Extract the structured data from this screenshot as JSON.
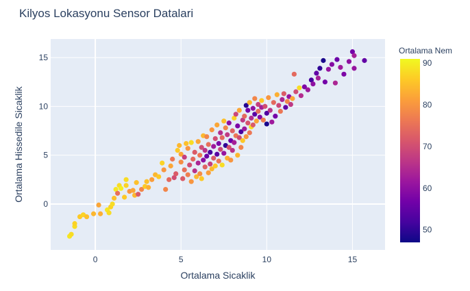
{
  "chart_data": {
    "type": "scatter",
    "title": "Kilyos Lokasyonu Sensor Datalari",
    "xlabel": "Ortalama Sicaklik",
    "ylabel": "Ortalama Hissedile Sicaklik",
    "xlim": [
      -2.6,
      16.9
    ],
    "ylim": [
      -4.7,
      16.9
    ],
    "x_ticks": [
      "0",
      "5",
      "10",
      "15"
    ],
    "x_tick_values": [
      0,
      5,
      10,
      15
    ],
    "y_ticks": [
      "0",
      "5",
      "10",
      "15"
    ],
    "y_tick_values": [
      0,
      5,
      10,
      15
    ],
    "grid": true,
    "colorbar": {
      "title": "Ortalama Nem",
      "range": [
        47,
        91
      ],
      "ticks": [
        "90",
        "80",
        "70",
        "60",
        "50"
      ],
      "tick_values": [
        90,
        80,
        70,
        60,
        50
      ],
      "colorscale": [
        "#0d0887",
        "#46039f",
        "#7201a8",
        "#9c179e",
        "#bd3786",
        "#d8576b",
        "#ed7953",
        "#fb9f3a",
        "#fdca26",
        "#f0f921"
      ]
    },
    "points": [
      {
        "x": -1.5,
        "y": -3.3,
        "c": 89
      },
      {
        "x": -1.4,
        "y": -3.1,
        "c": 88
      },
      {
        "x": -1.2,
        "y": -2.3,
        "c": 88
      },
      {
        "x": -1.2,
        "y": -2.0,
        "c": 87
      },
      {
        "x": -0.9,
        "y": -1.3,
        "c": 86
      },
      {
        "x": -0.7,
        "y": -1.1,
        "c": 87
      },
      {
        "x": -0.5,
        "y": -1.3,
        "c": 85
      },
      {
        "x": -0.1,
        "y": -1.0,
        "c": 84
      },
      {
        "x": 0.2,
        "y": -0.1,
        "c": 82
      },
      {
        "x": 0.3,
        "y": -1.0,
        "c": 83
      },
      {
        "x": 0.7,
        "y": -0.6,
        "c": 89
      },
      {
        "x": 0.8,
        "y": -0.9,
        "c": 88
      },
      {
        "x": 0.9,
        "y": -0.3,
        "c": 87
      },
      {
        "x": 1.0,
        "y": 0.0,
        "c": 88
      },
      {
        "x": 1.1,
        "y": 0.6,
        "c": 85
      },
      {
        "x": 1.2,
        "y": 1.5,
        "c": 89
      },
      {
        "x": 1.3,
        "y": 1.1,
        "c": 75
      },
      {
        "x": 1.4,
        "y": 1.9,
        "c": 88
      },
      {
        "x": 1.5,
        "y": 1.6,
        "c": 90
      },
      {
        "x": 1.7,
        "y": 0.7,
        "c": 86
      },
      {
        "x": 1.8,
        "y": 1.9,
        "c": 87
      },
      {
        "x": 1.8,
        "y": 2.5,
        "c": 88
      },
      {
        "x": 2.0,
        "y": 1.3,
        "c": 80
      },
      {
        "x": 2.2,
        "y": 1.4,
        "c": 82
      },
      {
        "x": 2.3,
        "y": 0.9,
        "c": 84
      },
      {
        "x": 2.4,
        "y": 2.2,
        "c": 85
      },
      {
        "x": 2.5,
        "y": 1.0,
        "c": 72
      },
      {
        "x": 2.7,
        "y": 1.5,
        "c": 78
      },
      {
        "x": 2.9,
        "y": 1.8,
        "c": 86
      },
      {
        "x": 3.0,
        "y": 2.3,
        "c": 85
      },
      {
        "x": 3.1,
        "y": 1.7,
        "c": 83
      },
      {
        "x": 3.3,
        "y": 2.5,
        "c": 81
      },
      {
        "x": 3.5,
        "y": 3.0,
        "c": 84
      },
      {
        "x": 3.7,
        "y": 2.8,
        "c": 86
      },
      {
        "x": 3.9,
        "y": 4.2,
        "c": 87
      },
      {
        "x": 4.0,
        "y": 3.5,
        "c": 80
      },
      {
        "x": 4.1,
        "y": 1.5,
        "c": 78
      },
      {
        "x": 4.3,
        "y": 2.5,
        "c": 74
      },
      {
        "x": 4.4,
        "y": 3.9,
        "c": 82
      },
      {
        "x": 4.5,
        "y": 4.6,
        "c": 76
      },
      {
        "x": 4.6,
        "y": 2.7,
        "c": 70
      },
      {
        "x": 4.7,
        "y": 3.1,
        "c": 72
      },
      {
        "x": 4.8,
        "y": 5.5,
        "c": 86
      },
      {
        "x": 4.9,
        "y": 6.0,
        "c": 84
      },
      {
        "x": 5.0,
        "y": 4.3,
        "c": 79
      },
      {
        "x": 5.0,
        "y": 5.1,
        "c": 82
      },
      {
        "x": 5.1,
        "y": 2.6,
        "c": 72
      },
      {
        "x": 5.2,
        "y": 3.5,
        "c": 75
      },
      {
        "x": 5.2,
        "y": 4.8,
        "c": 68
      },
      {
        "x": 5.3,
        "y": 6.2,
        "c": 85
      },
      {
        "x": 5.4,
        "y": 3.0,
        "c": 77
      },
      {
        "x": 5.4,
        "y": 5.7,
        "c": 80
      },
      {
        "x": 5.5,
        "y": 4.0,
        "c": 70
      },
      {
        "x": 5.6,
        "y": 2.3,
        "c": 80
      },
      {
        "x": 5.6,
        "y": 6.3,
        "c": 88
      },
      {
        "x": 5.7,
        "y": 4.6,
        "c": 74
      },
      {
        "x": 5.8,
        "y": 3.4,
        "c": 66
      },
      {
        "x": 5.8,
        "y": 5.3,
        "c": 72
      },
      {
        "x": 5.9,
        "y": 2.8,
        "c": 84
      },
      {
        "x": 6.0,
        "y": 4.2,
        "c": 64
      },
      {
        "x": 6.0,
        "y": 6.4,
        "c": 82
      },
      {
        "x": 6.1,
        "y": 5.0,
        "c": 76
      },
      {
        "x": 6.1,
        "y": 3.1,
        "c": 79
      },
      {
        "x": 6.2,
        "y": 5.8,
        "c": 70
      },
      {
        "x": 6.2,
        "y": 2.6,
        "c": 86
      },
      {
        "x": 6.3,
        "y": 4.5,
        "c": 60
      },
      {
        "x": 6.3,
        "y": 7.0,
        "c": 84
      },
      {
        "x": 6.4,
        "y": 3.8,
        "c": 73
      },
      {
        "x": 6.4,
        "y": 5.5,
        "c": 66
      },
      {
        "x": 6.5,
        "y": 4.9,
        "c": 56
      },
      {
        "x": 6.5,
        "y": 6.9,
        "c": 78
      },
      {
        "x": 6.6,
        "y": 3.2,
        "c": 81
      },
      {
        "x": 6.6,
        "y": 6.1,
        "c": 75
      },
      {
        "x": 6.7,
        "y": 4.1,
        "c": 68
      },
      {
        "x": 6.7,
        "y": 5.3,
        "c": 52
      },
      {
        "x": 6.8,
        "y": 7.6,
        "c": 80
      },
      {
        "x": 6.8,
        "y": 3.6,
        "c": 84
      },
      {
        "x": 6.9,
        "y": 5.9,
        "c": 62
      },
      {
        "x": 6.9,
        "y": 4.7,
        "c": 72
      },
      {
        "x": 7.0,
        "y": 6.7,
        "c": 70
      },
      {
        "x": 7.0,
        "y": 3.9,
        "c": 86
      },
      {
        "x": 7.1,
        "y": 5.1,
        "c": 54
      },
      {
        "x": 7.1,
        "y": 8.1,
        "c": 82
      },
      {
        "x": 7.2,
        "y": 6.2,
        "c": 58
      },
      {
        "x": 7.2,
        "y": 4.4,
        "c": 76
      },
      {
        "x": 7.3,
        "y": 7.3,
        "c": 65
      },
      {
        "x": 7.3,
        "y": 5.6,
        "c": 69
      },
      {
        "x": 7.4,
        "y": 4.0,
        "c": 88
      },
      {
        "x": 7.4,
        "y": 6.8,
        "c": 74
      },
      {
        "x": 7.5,
        "y": 8.5,
        "c": 85
      },
      {
        "x": 7.5,
        "y": 5.2,
        "c": 61
      },
      {
        "x": 7.6,
        "y": 6.0,
        "c": 50
      },
      {
        "x": 7.6,
        "y": 7.8,
        "c": 78
      },
      {
        "x": 7.7,
        "y": 4.7,
        "c": 83
      },
      {
        "x": 7.7,
        "y": 7.1,
        "c": 67
      },
      {
        "x": 7.8,
        "y": 5.8,
        "c": 71
      },
      {
        "x": 7.8,
        "y": 8.3,
        "c": 60
      },
      {
        "x": 7.9,
        "y": 6.5,
        "c": 56
      },
      {
        "x": 7.9,
        "y": 4.5,
        "c": 80
      },
      {
        "x": 8.0,
        "y": 7.5,
        "c": 73
      },
      {
        "x": 8.0,
        "y": 5.5,
        "c": 66
      },
      {
        "x": 8.1,
        "y": 8.8,
        "c": 87
      },
      {
        "x": 8.1,
        "y": 6.3,
        "c": 63
      },
      {
        "x": 8.2,
        "y": 7.0,
        "c": 76
      },
      {
        "x": 8.2,
        "y": 9.2,
        "c": 69
      },
      {
        "x": 8.3,
        "y": 5.0,
        "c": 84
      },
      {
        "x": 8.3,
        "y": 8.0,
        "c": 58
      },
      {
        "x": 8.4,
        "y": 6.8,
        "c": 70
      },
      {
        "x": 8.4,
        "y": 9.6,
        "c": 82
      },
      {
        "x": 8.5,
        "y": 7.4,
        "c": 52
      },
      {
        "x": 8.5,
        "y": 5.8,
        "c": 78
      },
      {
        "x": 8.6,
        "y": 8.6,
        "c": 67
      },
      {
        "x": 8.6,
        "y": 6.5,
        "c": 86
      },
      {
        "x": 8.7,
        "y": 9.0,
        "c": 74
      },
      {
        "x": 8.7,
        "y": 7.7,
        "c": 62
      },
      {
        "x": 8.8,
        "y": 10.1,
        "c": 49
      },
      {
        "x": 8.8,
        "y": 6.9,
        "c": 80
      },
      {
        "x": 8.9,
        "y": 8.3,
        "c": 71
      },
      {
        "x": 8.9,
        "y": 9.6,
        "c": 57
      },
      {
        "x": 9.0,
        "y": 7.3,
        "c": 76
      },
      {
        "x": 9.0,
        "y": 10.4,
        "c": 84
      },
      {
        "x": 9.1,
        "y": 8.8,
        "c": 65
      },
      {
        "x": 9.1,
        "y": 7.9,
        "c": 88
      },
      {
        "x": 9.2,
        "y": 9.8,
        "c": 60
      },
      {
        "x": 9.2,
        "y": 8.1,
        "c": 72
      },
      {
        "x": 9.3,
        "y": 10.8,
        "c": 78
      },
      {
        "x": 9.3,
        "y": 9.2,
        "c": 54
      },
      {
        "x": 9.4,
        "y": 8.5,
        "c": 82
      },
      {
        "x": 9.5,
        "y": 10.2,
        "c": 68
      },
      {
        "x": 9.5,
        "y": 9.5,
        "c": 75
      },
      {
        "x": 9.6,
        "y": 8.9,
        "c": 59
      },
      {
        "x": 9.7,
        "y": 10.6,
        "c": 86
      },
      {
        "x": 9.7,
        "y": 9.9,
        "c": 63
      },
      {
        "x": 9.8,
        "y": 8.6,
        "c": 77
      },
      {
        "x": 9.9,
        "y": 10.0,
        "c": 70
      },
      {
        "x": 10.0,
        "y": 9.3,
        "c": 53
      },
      {
        "x": 10.0,
        "y": 8.2,
        "c": 48
      },
      {
        "x": 10.1,
        "y": 10.9,
        "c": 80
      },
      {
        "x": 10.2,
        "y": 9.6,
        "c": 66
      },
      {
        "x": 10.3,
        "y": 8.4,
        "c": 62
      },
      {
        "x": 10.4,
        "y": 10.4,
        "c": 74
      },
      {
        "x": 10.5,
        "y": 9.0,
        "c": 57
      },
      {
        "x": 10.6,
        "y": 11.2,
        "c": 83
      },
      {
        "x": 10.7,
        "y": 10.1,
        "c": 69
      },
      {
        "x": 10.8,
        "y": 9.5,
        "c": 76
      },
      {
        "x": 10.9,
        "y": 10.7,
        "c": 64
      },
      {
        "x": 11.0,
        "y": 11.3,
        "c": 72
      },
      {
        "x": 11.1,
        "y": 9.9,
        "c": 55
      },
      {
        "x": 11.2,
        "y": 10.5,
        "c": 78
      },
      {
        "x": 11.3,
        "y": 11.0,
        "c": 61
      },
      {
        "x": 11.4,
        "y": 10.2,
        "c": 67
      },
      {
        "x": 11.5,
        "y": 10.8,
        "c": 82
      },
      {
        "x": 11.6,
        "y": 13.3,
        "c": 74
      },
      {
        "x": 11.7,
        "y": 11.5,
        "c": 70
      },
      {
        "x": 11.9,
        "y": 11.9,
        "c": 88
      },
      {
        "x": 12.0,
        "y": 11.1,
        "c": 65
      },
      {
        "x": 12.2,
        "y": 12.0,
        "c": 58
      },
      {
        "x": 12.4,
        "y": 11.7,
        "c": 62
      },
      {
        "x": 12.6,
        "y": 12.7,
        "c": 52
      },
      {
        "x": 12.7,
        "y": 12.3,
        "c": 60
      },
      {
        "x": 12.9,
        "y": 13.4,
        "c": 55
      },
      {
        "x": 13.0,
        "y": 12.9,
        "c": 63
      },
      {
        "x": 13.1,
        "y": 13.9,
        "c": 50
      },
      {
        "x": 13.3,
        "y": 14.7,
        "c": 48
      },
      {
        "x": 13.4,
        "y": 12.5,
        "c": 57
      },
      {
        "x": 13.6,
        "y": 13.8,
        "c": 61
      },
      {
        "x": 13.8,
        "y": 14.3,
        "c": 59
      },
      {
        "x": 14.0,
        "y": 12.4,
        "c": 64
      },
      {
        "x": 14.1,
        "y": 14.8,
        "c": 56
      },
      {
        "x": 14.3,
        "y": 14.0,
        "c": 62
      },
      {
        "x": 14.5,
        "y": 13.3,
        "c": 58
      },
      {
        "x": 14.8,
        "y": 14.6,
        "c": 60
      },
      {
        "x": 15.0,
        "y": 15.6,
        "c": 57
      },
      {
        "x": 15.1,
        "y": 15.2,
        "c": 63
      },
      {
        "x": 15.1,
        "y": 13.9,
        "c": 61
      },
      {
        "x": 15.7,
        "y": 14.7,
        "c": 55
      }
    ]
  }
}
